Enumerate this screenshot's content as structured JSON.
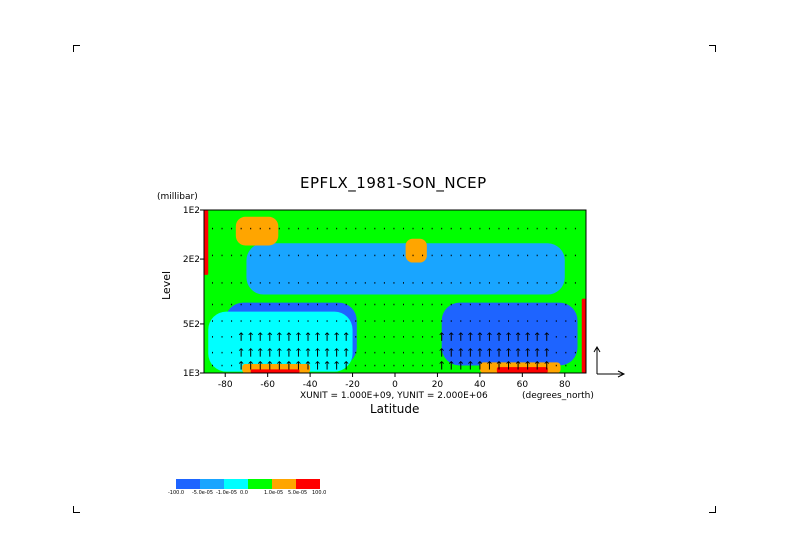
{
  "chart_data": {
    "type": "heatmap",
    "title": "EPFLX_1981-SON_NCEP",
    "y_units": "(millibar)",
    "ylabel": "Level",
    "xlabel": "Latitude",
    "x_units": "(degrees_north)",
    "unit_note": "XUNIT = 1.000E+09, YUNIT = 2.000E+06",
    "xlim": [
      -90,
      90
    ],
    "ylim": [
      1000,
      100
    ],
    "y_scale": "log",
    "x_ticks": [
      -80,
      -60,
      -40,
      -20,
      0,
      20,
      40,
      60,
      80
    ],
    "y_ticks": [
      {
        "value": 100,
        "label": "1E2"
      },
      {
        "value": 200,
        "label": "2E2"
      },
      {
        "value": 500,
        "label": "5E2"
      },
      {
        "value": 1000,
        "label": "1E3"
      }
    ],
    "colorbar": {
      "colors": [
        "#1e64ff",
        "#19a5ff",
        "#00ffff",
        "#00ff00",
        "#ffa500",
        "#ff0000"
      ],
      "labels": [
        "-100.0",
        "-5.0e-05",
        "-1.0e-05",
        "0.0",
        "1.0e-05",
        "5.0e-05",
        "100.0"
      ]
    },
    "regions": [
      {
        "label": "0.0",
        "lat": [
          -90,
          90
        ],
        "lev": [
          100,
          1000
        ],
        "level": 3
      },
      {
        "label": "-5.0e-05",
        "lat": [
          -70,
          80
        ],
        "lev": [
          160,
          330
        ],
        "level": 1
      },
      {
        "label": "-100.0",
        "lat": [
          -80,
          -18
        ],
        "lev": [
          370,
          900
        ],
        "level": 0
      },
      {
        "label": "-100.0",
        "lat": [
          22,
          86
        ],
        "lev": [
          370,
          900
        ],
        "level": 0
      },
      {
        "label": "-1.0e-05",
        "lat": [
          -88,
          -20
        ],
        "lev": [
          420,
          980
        ],
        "level": 2
      },
      {
        "label": "1.0e-05",
        "lat": [
          -75,
          -55
        ],
        "lev": [
          110,
          165
        ],
        "level": 4
      },
      {
        "label": "1.0e-05",
        "lat": [
          5,
          15
        ],
        "lev": [
          150,
          210
        ],
        "level": 4
      },
      {
        "label": "1.0e-05",
        "lat": [
          -72,
          -40
        ],
        "lev": [
          880,
          1000
        ],
        "level": 4
      },
      {
        "label": "5.0e-05",
        "lat": [
          -68,
          -45
        ],
        "lev": [
          950,
          1000
        ],
        "level": 5
      },
      {
        "label": "1.0e-05",
        "lat": [
          40,
          78
        ],
        "lev": [
          860,
          1000
        ],
        "level": 4
      },
      {
        "label": "5.0e-05",
        "lat": [
          48,
          72
        ],
        "lev": [
          920,
          1000
        ],
        "level": 5
      },
      {
        "label": "100.0",
        "lat": [
          -90,
          -88
        ],
        "lev": [
          100,
          250
        ],
        "level": 6
      },
      {
        "label": "100.0",
        "lat": [
          88,
          90
        ],
        "lev": [
          350,
          1000
        ],
        "level": 6
      }
    ],
    "vector_rows": [
      {
        "lev": 130
      },
      {
        "lev": 190
      },
      {
        "lev": 280
      },
      {
        "lev": 380
      },
      {
        "lev": 480
      },
      {
        "lev": 600
      },
      {
        "lev": 750
      },
      {
        "lev": 900
      }
    ]
  }
}
